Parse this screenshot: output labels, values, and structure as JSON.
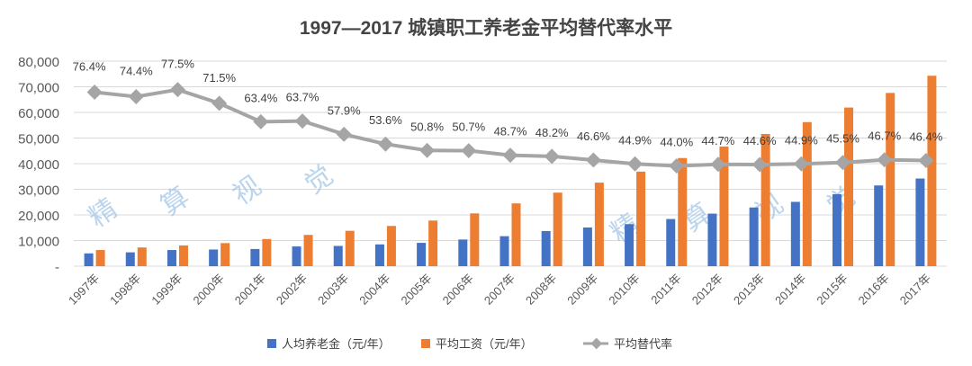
{
  "chart_data": {
    "type": "bar",
    "title": "1997—2017 城镇职工养老金平均替代率水平",
    "categories": [
      "1997年",
      "1998年",
      "1999年",
      "2000年",
      "2001年",
      "2002年",
      "2003年",
      "2004年",
      "2005年",
      "2006年",
      "2007年",
      "2008年",
      "2009年",
      "2010年",
      "2011年",
      "2012年",
      "2013年",
      "2014年",
      "2015年",
      "2016年",
      "2017年"
    ],
    "y_ticks": [
      "-",
      "10,000",
      "20,000",
      "30,000",
      "40,000",
      "50,000",
      "60,000",
      "70,000",
      "80,000"
    ],
    "ylim": [
      0,
      80000
    ],
    "y2lim": [
      0,
      0.9
    ],
    "grid": true,
    "legend_position": "bottom",
    "series": [
      {
        "name": "人均养老金（元/年）",
        "type": "bar",
        "axis": "left",
        "color": "#4472c4",
        "values": [
          5000,
          5400,
          6300,
          6500,
          6700,
          7700,
          7900,
          8500,
          9100,
          10400,
          11700,
          13700,
          15100,
          16400,
          18400,
          20500,
          22900,
          25100,
          28100,
          31500,
          34200
        ]
      },
      {
        "name": "平均工资（元/年）",
        "type": "bar",
        "axis": "left",
        "color": "#ed7d31",
        "values": [
          6300,
          7300,
          8100,
          9000,
          10600,
          12200,
          13800,
          15700,
          17800,
          20600,
          24500,
          28700,
          32600,
          36900,
          42200,
          46700,
          51600,
          56200,
          61900,
          67600,
          74300
        ]
      },
      {
        "name": "平均替代率",
        "type": "line",
        "axis": "right",
        "color": "#a5a5a5",
        "values": [
          0.764,
          0.744,
          0.775,
          0.715,
          0.634,
          0.637,
          0.579,
          0.536,
          0.508,
          0.507,
          0.487,
          0.482,
          0.466,
          0.449,
          0.44,
          0.447,
          0.446,
          0.449,
          0.455,
          0.467,
          0.464
        ],
        "labels": [
          "76.4%",
          "74.4%",
          "77.5%",
          "71.5%",
          "63.4%",
          "63.7%",
          "57.9%",
          "53.6%",
          "50.8%",
          "50.7%",
          "48.7%",
          "48.2%",
          "46.6%",
          "44.9%",
          "44.0%",
          "44.7%",
          "44.6%",
          "44.9%",
          "45.5%",
          "46.7%",
          "46.4%"
        ]
      }
    ]
  },
  "watermark": [
    "精",
    "算",
    "视",
    "觉"
  ]
}
